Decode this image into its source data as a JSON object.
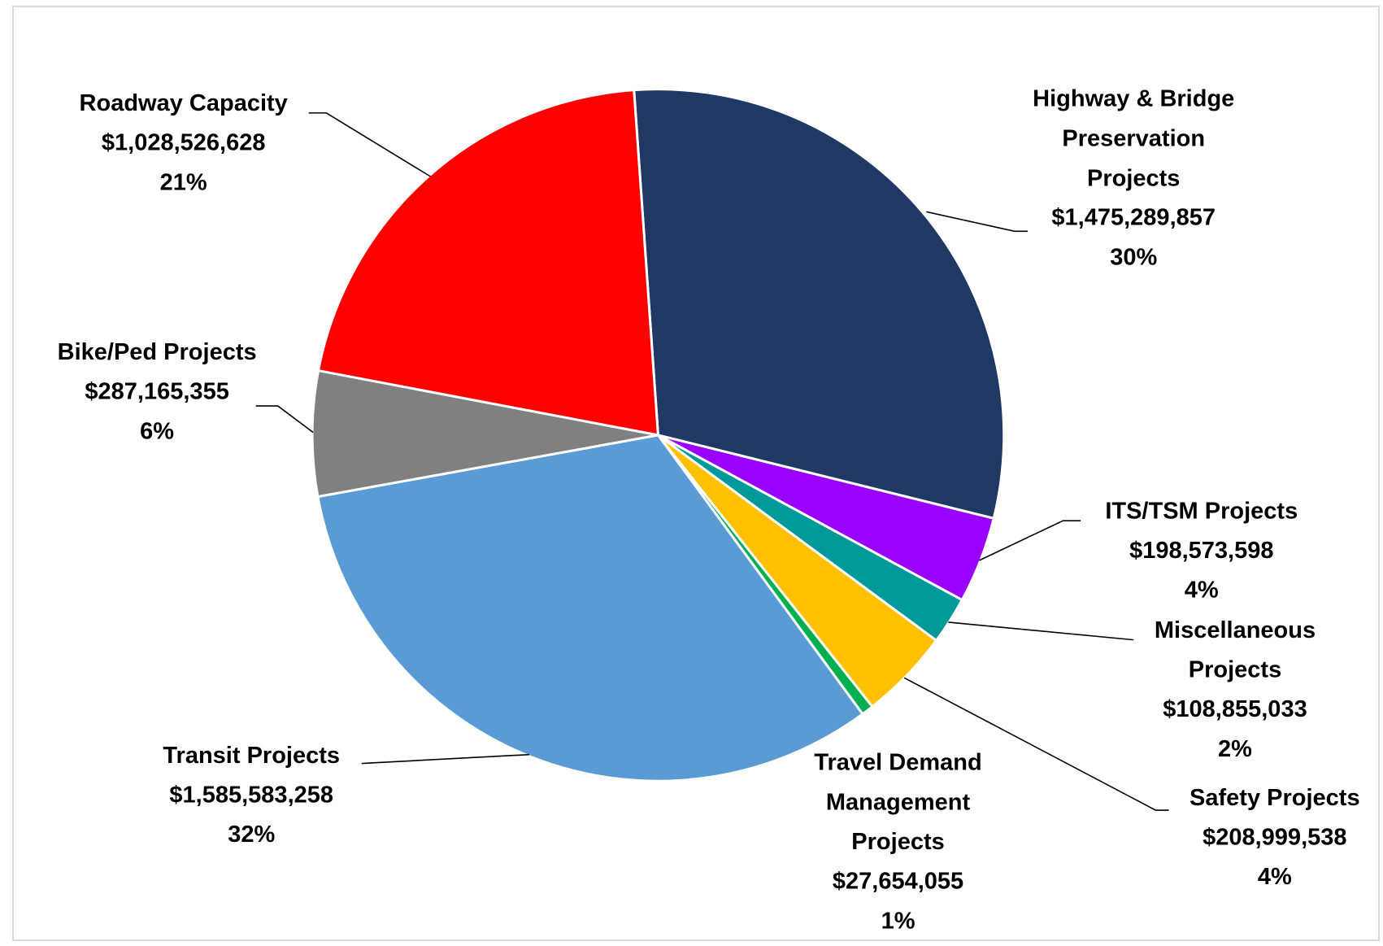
{
  "chart_data": {
    "type": "pie",
    "series": [
      {
        "name": "Highway & Bridge\nPreservation\nProjects",
        "color": "#203864",
        "values": [
          1475289857
        ],
        "value_labels": [
          "$1,475,289,857"
        ],
        "percents": [
          30
        ],
        "percent_labels": [
          "30%"
        ]
      },
      {
        "name": "ITS/TSM  Projects",
        "color": "#9900ff",
        "values": [
          198573598
        ],
        "value_labels": [
          "$198,573,598"
        ],
        "percents": [
          4
        ],
        "percent_labels": [
          "4%"
        ]
      },
      {
        "name": "Miscellaneous\nProjects",
        "color": "#009999",
        "values": [
          108855033
        ],
        "value_labels": [
          "$108,855,033"
        ],
        "percents": [
          2
        ],
        "percent_labels": [
          "2%"
        ]
      },
      {
        "name": "Safety Projects",
        "color": "#ffc000",
        "values": [
          208999538
        ],
        "value_labels": [
          "$208,999,538"
        ],
        "percents": [
          4
        ],
        "percent_labels": [
          "4%"
        ]
      },
      {
        "name": "Travel Demand\nManagement\nProjects",
        "color": "#00b050",
        "values": [
          27654055
        ],
        "value_labels": [
          "$27,654,055"
        ],
        "percents": [
          1
        ],
        "percent_labels": [
          "1%"
        ]
      },
      {
        "name": "Transit Projects",
        "color": "#5b9bd5",
        "values": [
          1585583258
        ],
        "value_labels": [
          "$1,585,583,258"
        ],
        "percents": [
          32
        ],
        "percent_labels": [
          "32%"
        ]
      },
      {
        "name": "Bike/Ped Projects",
        "color": "#808080",
        "values": [
          287165355
        ],
        "value_labels": [
          "$287,165,355"
        ],
        "percents": [
          6
        ],
        "percent_labels": [
          "6%"
        ]
      },
      {
        "name": "Roadway Capacity",
        "color": "#ff0000",
        "values": [
          1028526628
        ],
        "value_labels": [
          "$1,028,526,628"
        ],
        "percents": [
          21
        ],
        "percent_labels": [
          "21%"
        ]
      }
    ]
  }
}
